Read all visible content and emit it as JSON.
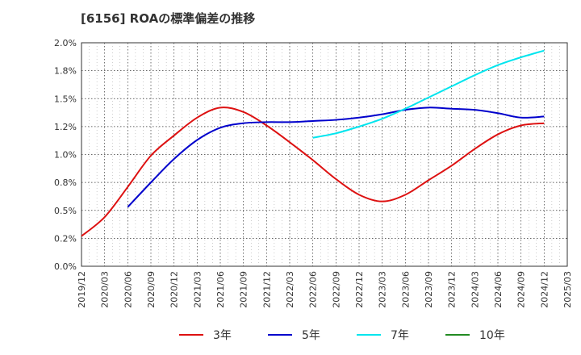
{
  "title": "[6156]  ROAの標準偏差の推移",
  "chart_data": {
    "type": "line",
    "title": "[6156]  ROAの標準偏差の推移",
    "xlabel": "",
    "ylabel": "",
    "x_ticks": [
      "2019/12",
      "2020/03",
      "2020/06",
      "2020/09",
      "2020/12",
      "2021/03",
      "2021/06",
      "2021/09",
      "2021/12",
      "2022/03",
      "2022/06",
      "2022/09",
      "2022/12",
      "2023/03",
      "2023/06",
      "2023/09",
      "2023/12",
      "2024/03",
      "2024/06",
      "2024/09",
      "2024/12",
      "2025/03"
    ],
    "y_ticks": [
      "0.0%",
      "0.2%",
      "0.5%",
      "0.8%",
      "1.0%",
      "1.2%",
      "1.5%",
      "1.8%",
      "2.0%"
    ],
    "ylim": [
      0,
      2.0
    ],
    "grid": true,
    "legend_position": "bottom",
    "series": [
      {
        "name": "3年",
        "color": "#dd1111",
        "points": [
          [
            "2019/12",
            0.27
          ],
          [
            "2020/03",
            0.44
          ],
          [
            "2020/06",
            0.71
          ],
          [
            "2020/09",
            0.99
          ],
          [
            "2020/12",
            1.17
          ],
          [
            "2021/03",
            1.33
          ],
          [
            "2021/06",
            1.42
          ],
          [
            "2021/09",
            1.38
          ],
          [
            "2021/12",
            1.26
          ],
          [
            "2022/03",
            1.11
          ],
          [
            "2022/06",
            0.95
          ],
          [
            "2022/09",
            0.78
          ],
          [
            "2022/12",
            0.64
          ],
          [
            "2023/03",
            0.58
          ],
          [
            "2023/06",
            0.64
          ],
          [
            "2023/09",
            0.77
          ],
          [
            "2023/12",
            0.9
          ],
          [
            "2024/03",
            1.05
          ],
          [
            "2024/06",
            1.18
          ],
          [
            "2024/09",
            1.26
          ],
          [
            "2024/12",
            1.28
          ]
        ]
      },
      {
        "name": "5年",
        "color": "#0000cc",
        "points": [
          [
            "2020/06",
            0.53
          ],
          [
            "2020/09",
            0.75
          ],
          [
            "2020/12",
            0.96
          ],
          [
            "2021/03",
            1.13
          ],
          [
            "2021/06",
            1.24
          ],
          [
            "2021/09",
            1.28
          ],
          [
            "2021/12",
            1.29
          ],
          [
            "2022/03",
            1.29
          ],
          [
            "2022/06",
            1.3
          ],
          [
            "2022/09",
            1.31
          ],
          [
            "2022/12",
            1.33
          ],
          [
            "2023/03",
            1.36
          ],
          [
            "2023/06",
            1.4
          ],
          [
            "2023/09",
            1.42
          ],
          [
            "2023/12",
            1.41
          ],
          [
            "2024/03",
            1.4
          ],
          [
            "2024/06",
            1.37
          ],
          [
            "2024/09",
            1.33
          ],
          [
            "2024/12",
            1.34
          ]
        ]
      },
      {
        "name": "7年",
        "color": "#00e5ee",
        "points": [
          [
            "2022/06",
            1.15
          ],
          [
            "2022/09",
            1.19
          ],
          [
            "2022/12",
            1.25
          ],
          [
            "2023/03",
            1.32
          ],
          [
            "2023/06",
            1.41
          ],
          [
            "2023/09",
            1.51
          ],
          [
            "2023/12",
            1.61
          ],
          [
            "2024/03",
            1.71
          ],
          [
            "2024/06",
            1.8
          ],
          [
            "2024/09",
            1.87
          ],
          [
            "2024/12",
            1.93
          ]
        ]
      },
      {
        "name": "10年",
        "color": "#228b22",
        "points": []
      }
    ]
  }
}
